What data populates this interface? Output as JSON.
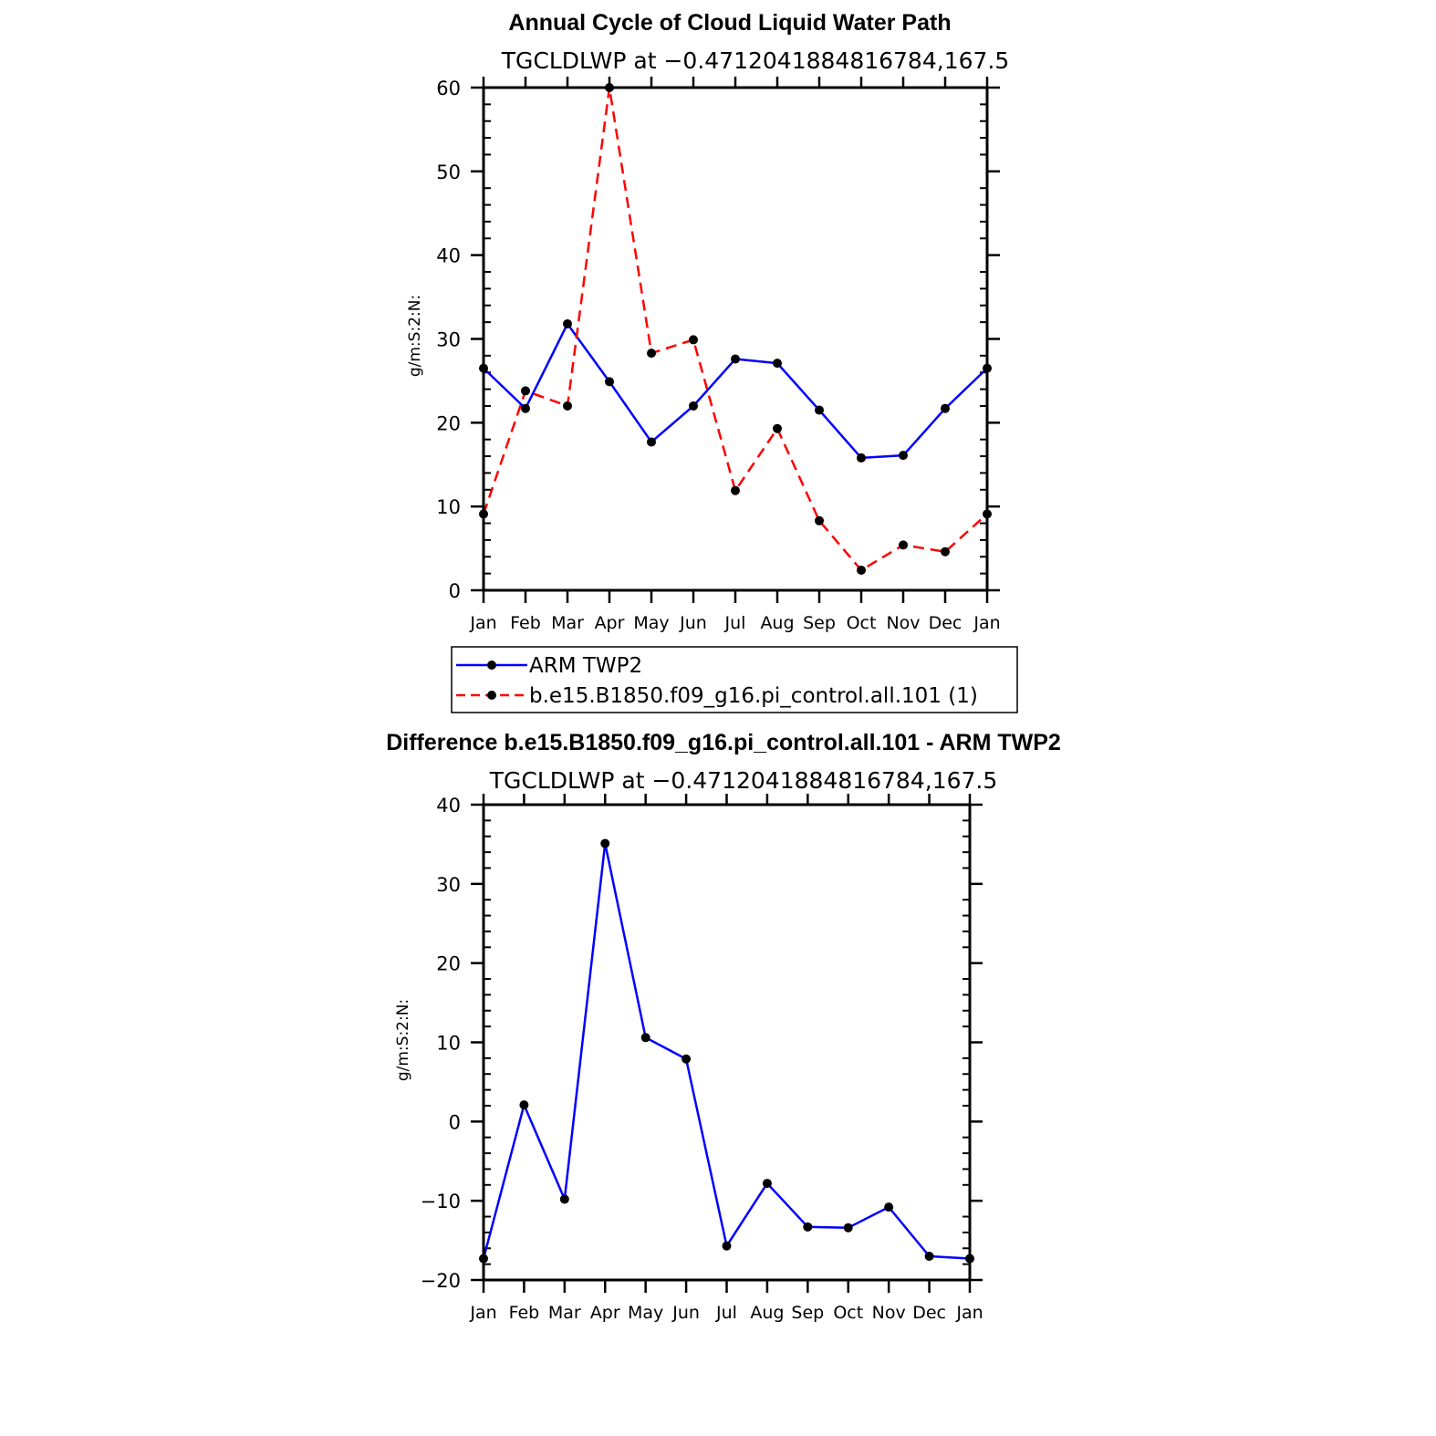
{
  "chart_data": [
    {
      "type": "line",
      "title": "Annual Cycle of Cloud Liquid Water Path",
      "subtitle": "TGCLDLWP at −0.4712041884816784,167.5",
      "ylabel": "g/m:S:2:N:",
      "xlabel": "",
      "categories": [
        "Jan",
        "Feb",
        "Mar",
        "Apr",
        "May",
        "Jun",
        "Jul",
        "Aug",
        "Sep",
        "Oct",
        "Nov",
        "Dec",
        "Jan"
      ],
      "yticks": [
        "0",
        "10",
        "20",
        "30",
        "40",
        "50",
        "60"
      ],
      "ylim": [
        0,
        60
      ],
      "grid": false,
      "series": [
        {
          "name": "ARM TWP2",
          "color": "#0000ff",
          "dash": "solid",
          "values": [
            26.5,
            21.7,
            31.8,
            24.9,
            17.7,
            22.0,
            27.6,
            27.1,
            21.5,
            15.8,
            16.1,
            21.7,
            26.5
          ]
        },
        {
          "name": "b.e15.B1850.f09_g16.pi_control.all.101 (1)",
          "color": "#ff0000",
          "dash": "dashed",
          "values": [
            9.1,
            23.8,
            22.0,
            60.0,
            28.3,
            29.9,
            11.9,
            19.3,
            8.3,
            2.4,
            5.4,
            4.6,
            9.1
          ]
        }
      ],
      "legend": {
        "position": "bottom"
      }
    },
    {
      "type": "line",
      "title": "Difference b.e15.B1850.f09_g16.pi_control.all.101 - ARM TWP2",
      "subtitle": "TGCLDLWP at −0.4712041884816784,167.5",
      "ylabel": "g/m:S:2:N:",
      "xlabel": "",
      "categories": [
        "Jan",
        "Feb",
        "Mar",
        "Apr",
        "May",
        "Jun",
        "Jul",
        "Aug",
        "Sep",
        "Oct",
        "Nov",
        "Dec",
        "Jan"
      ],
      "yticks": [
        "−20",
        "−10",
        "0",
        "10",
        "20",
        "30",
        "40"
      ],
      "ylim": [
        -20,
        40
      ],
      "grid": false,
      "series": [
        {
          "name": "Difference",
          "color": "#0000ff",
          "dash": "solid",
          "values": [
            -17.3,
            2.1,
            -9.8,
            35.1,
            10.6,
            7.9,
            -15.7,
            -7.8,
            -13.3,
            -13.4,
            -10.8,
            -17.0,
            -17.3
          ]
        }
      ]
    }
  ]
}
